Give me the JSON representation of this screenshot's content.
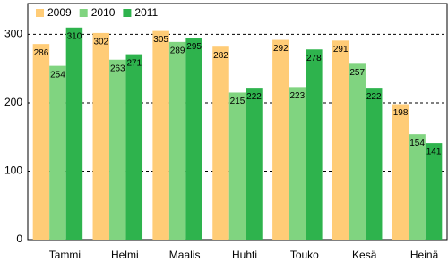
{
  "chart_data": {
    "type": "bar",
    "categories": [
      "Tammi",
      "Helmi",
      "Maalis",
      "Huhti",
      "Touko",
      "Kesä",
      "Heinä"
    ],
    "series": [
      {
        "name": "2009",
        "color": "#ffcc77",
        "values": [
          286,
          302,
          305,
          282,
          292,
          291,
          198
        ]
      },
      {
        "name": "2010",
        "color": "#80d480",
        "values": [
          254,
          263,
          289,
          215,
          223,
          257,
          154
        ]
      },
      {
        "name": "2011",
        "color": "#2eb34d",
        "values": [
          310,
          271,
          295,
          222,
          278,
          222,
          141
        ]
      }
    ],
    "ylim": [
      0,
      345
    ],
    "yticks": [
      0,
      100,
      200,
      300
    ],
    "grid": true,
    "legend": "top-left"
  }
}
